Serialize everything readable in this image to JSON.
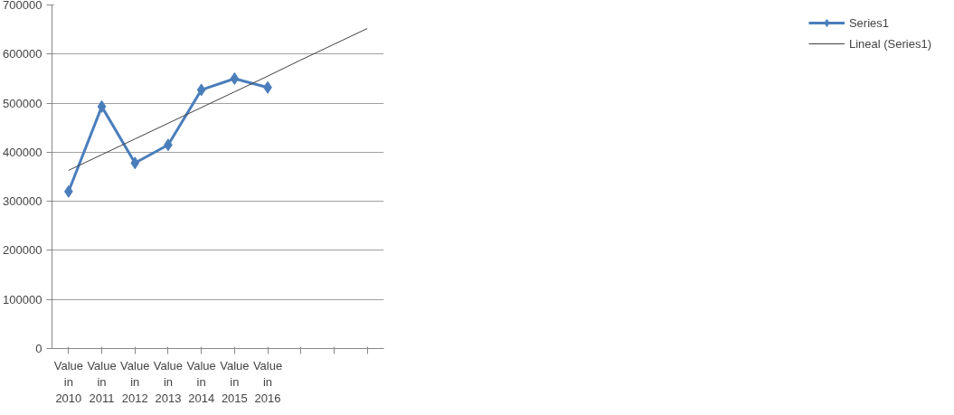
{
  "chart_data": {
    "type": "line",
    "categories": [
      "Value in 2010",
      "Value in 2011",
      "Value in 2012",
      "Value in 2013",
      "Value in 2014",
      "Value in 2015",
      "Value in 2016",
      null,
      null,
      null
    ],
    "series": [
      {
        "name": "Series1",
        "color": "#4a7ebb",
        "marker": "diamond",
        "values": [
          320000,
          493000,
          378000,
          415000,
          527000,
          550000,
          532000,
          null,
          null,
          null
        ]
      },
      {
        "name": "Lineal (Series1)",
        "color": "#404040",
        "marker": "none",
        "values": [
          363000,
          395000,
          427000,
          459000,
          491000,
          523000,
          555000,
          588000,
          620000,
          652000
        ]
      }
    ],
    "ylim": [
      0,
      700000
    ],
    "yticks": [
      0,
      100000,
      200000,
      300000,
      400000,
      500000,
      600000,
      700000
    ],
    "grid": "y",
    "legend": "right"
  }
}
